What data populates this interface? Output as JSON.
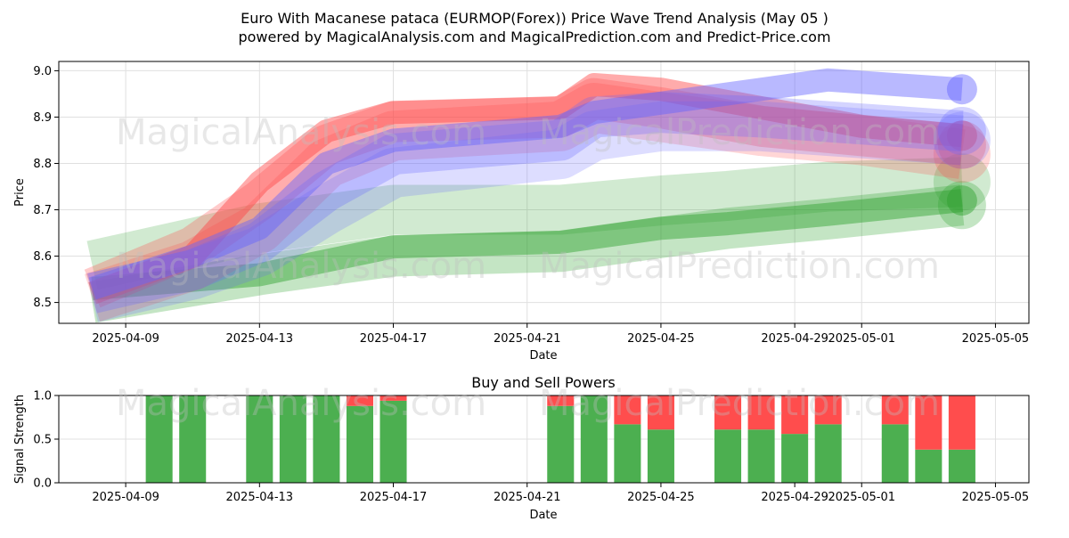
{
  "title_line1": "Euro With Macanese pataca (EURMOP(Forex)) Price Wave Trend Analysis (May 05 )",
  "title_line2": "powered by MagicalAnalysis.com and MagicalPrediction.com and Predict-Price.com",
  "watermarks": {
    "top_left": "MagicalAnalysis.com",
    "top_right": "MagicalPrediction.com",
    "mid_left": "MagicalAnalysis.com",
    "mid_right": "MagicalPrediction.com",
    "bottom_left": "MagicalAnalysis.com",
    "bottom_right": "MagicalPrediction.com"
  },
  "colors": {
    "green": "#2ca02c",
    "red": "#ff4444",
    "blue": "#6464ff",
    "bar_green": "#4caf50",
    "bar_red": "#ff4d4d"
  },
  "chart_data": [
    {
      "type": "line",
      "title": "",
      "xlabel": "Date",
      "ylabel": "Price",
      "xlim": [
        "2025-04-07",
        "2025-05-06"
      ],
      "ylim": [
        8.455,
        9.02
      ],
      "x_ticks": [
        "2025-04-09",
        "2025-04-13",
        "2025-04-17",
        "2025-04-21",
        "2025-04-25",
        "2025-04-29",
        "2025-05-01",
        "2025-05-05"
      ],
      "y_ticks": [
        "8.5",
        "8.6",
        "8.7",
        "8.8",
        "8.9",
        "9.0"
      ],
      "grid": true,
      "series": [
        {
          "color": "green",
          "x": [
            "2025-04-08",
            "2025-04-13",
            "2025-04-17",
            "2025-04-22",
            "2025-04-25",
            "2025-04-27",
            "2025-04-30",
            "2025-05-04"
          ],
          "values": [
            8.53,
            8.56,
            8.62,
            8.63,
            8.66,
            8.67,
            8.69,
            8.72
          ]
        },
        {
          "color": "green",
          "x": [
            "2025-04-08",
            "2025-04-13",
            "2025-04-17",
            "2025-04-22",
            "2025-04-25",
            "2025-04-27",
            "2025-04-30",
            "2025-05-04"
          ],
          "values": [
            8.5,
            8.56,
            8.6,
            8.61,
            8.64,
            8.66,
            8.68,
            8.71
          ]
        },
        {
          "color": "green",
          "x": [
            "2025-04-08",
            "2025-04-13",
            "2025-04-17",
            "2025-04-22",
            "2025-04-25",
            "2025-04-27",
            "2025-04-30",
            "2025-05-04"
          ],
          "values": [
            8.58,
            8.66,
            8.7,
            8.7,
            8.72,
            8.73,
            8.75,
            8.76
          ]
        },
        {
          "color": "red",
          "x": [
            "2025-04-08",
            "2025-04-11",
            "2025-04-13",
            "2025-04-15",
            "2025-04-17",
            "2025-04-22",
            "2025-04-23",
            "2025-04-25",
            "2025-04-28",
            "2025-05-01",
            "2025-05-04"
          ],
          "values": [
            8.52,
            8.6,
            8.76,
            8.87,
            8.91,
            8.92,
            8.97,
            8.96,
            8.92,
            8.88,
            8.86
          ]
        },
        {
          "color": "red",
          "x": [
            "2025-04-08",
            "2025-04-11",
            "2025-04-13",
            "2025-04-15",
            "2025-04-17",
            "2025-04-22",
            "2025-04-23",
            "2025-04-25",
            "2025-04-28",
            "2025-05-01",
            "2025-05-04"
          ],
          "values": [
            8.53,
            8.62,
            8.72,
            8.84,
            8.89,
            8.9,
            8.94,
            8.92,
            8.88,
            8.86,
            8.84
          ]
        },
        {
          "color": "red",
          "x": [
            "2025-04-08",
            "2025-04-11",
            "2025-04-13",
            "2025-04-15",
            "2025-04-17",
            "2025-04-22",
            "2025-04-23",
            "2025-04-25",
            "2025-04-28",
            "2025-05-01",
            "2025-05-04"
          ],
          "values": [
            8.51,
            8.58,
            8.66,
            8.8,
            8.86,
            8.88,
            8.92,
            8.9,
            8.87,
            8.85,
            8.82
          ]
        },
        {
          "color": "blue",
          "x": [
            "2025-04-08",
            "2025-04-11",
            "2025-04-13",
            "2025-04-15",
            "2025-04-17",
            "2025-04-22",
            "2025-04-23",
            "2025-04-25",
            "2025-04-28",
            "2025-04-30",
            "2025-05-04"
          ],
          "values": [
            8.53,
            8.6,
            8.66,
            8.8,
            8.85,
            8.88,
            8.91,
            8.93,
            8.96,
            8.98,
            8.96
          ]
        },
        {
          "color": "blue",
          "x": [
            "2025-04-08",
            "2025-04-11",
            "2025-04-13",
            "2025-04-15",
            "2025-04-17",
            "2025-04-22",
            "2025-04-23",
            "2025-04-25",
            "2025-04-28",
            "2025-04-30",
            "2025-05-04"
          ],
          "values": [
            8.52,
            8.57,
            8.63,
            8.74,
            8.82,
            8.85,
            8.9,
            8.91,
            8.9,
            8.89,
            8.87
          ]
        },
        {
          "color": "blue",
          "x": [
            "2025-04-08",
            "2025-04-11",
            "2025-04-13",
            "2025-04-15",
            "2025-04-17",
            "2025-04-22",
            "2025-04-23",
            "2025-04-25",
            "2025-04-28",
            "2025-04-30",
            "2025-05-04"
          ],
          "values": [
            8.51,
            8.56,
            8.61,
            8.7,
            8.78,
            8.82,
            8.86,
            8.88,
            8.88,
            8.87,
            8.85
          ]
        }
      ]
    },
    {
      "type": "bar",
      "title": "Buy and Sell Powers",
      "xlabel": "Date",
      "ylabel": "Signal Strength",
      "ylim": [
        0,
        1
      ],
      "y_ticks": [
        "0.0",
        "0.5",
        "1.0"
      ],
      "x_ticks": [
        "2025-04-09",
        "2025-04-13",
        "2025-04-17",
        "2025-04-21",
        "2025-04-25",
        "2025-04-29",
        "2025-05-01",
        "2025-05-05"
      ],
      "grid": true,
      "categories": [
        "2025-04-10",
        "2025-04-11",
        "2025-04-13",
        "2025-04-14",
        "2025-04-15",
        "2025-04-16",
        "2025-04-17",
        "2025-04-22",
        "2025-04-23",
        "2025-04-24",
        "2025-04-25",
        "2025-04-27",
        "2025-04-28",
        "2025-04-29",
        "2025-04-30",
        "2025-05-02",
        "2025-05-03",
        "2025-05-04"
      ],
      "series": [
        {
          "color": "bar_green",
          "values": [
            1.0,
            1.0,
            1.0,
            1.0,
            1.0,
            0.88,
            0.94,
            0.88,
            1.0,
            0.67,
            0.61,
            0.61,
            0.61,
            0.56,
            0.67,
            0.67,
            0.38,
            0.38
          ]
        },
        {
          "color": "bar_red",
          "values": [
            0.0,
            0.0,
            0.0,
            0.0,
            0.0,
            0.12,
            0.06,
            0.12,
            0.0,
            0.33,
            0.39,
            0.39,
            0.39,
            0.44,
            0.33,
            0.33,
            0.62,
            0.62
          ]
        }
      ]
    }
  ]
}
